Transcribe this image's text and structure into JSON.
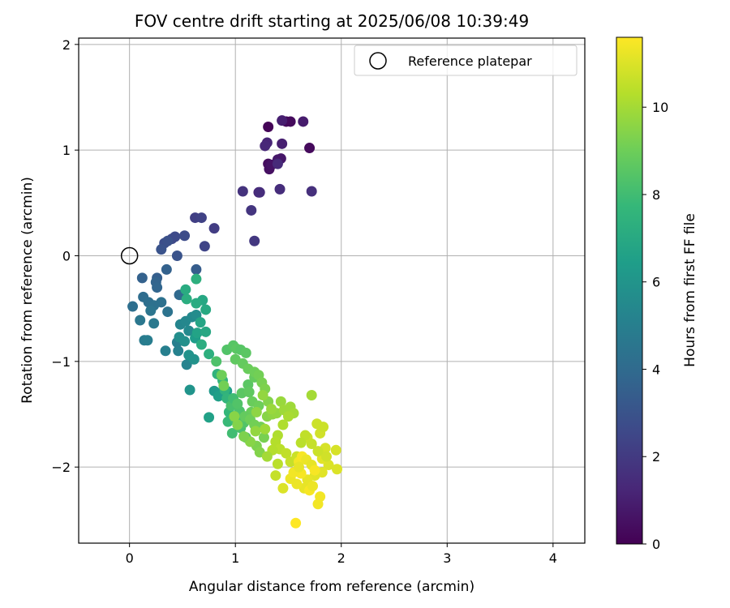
{
  "chart_data": {
    "type": "scatter",
    "title": "FOV centre drift starting at 2025/06/08 10:39:49",
    "xlabel": "Angular distance from reference (arcmin)",
    "ylabel": "Rotation from reference (arcmin)",
    "xlim": [
      -0.48,
      4.3
    ],
    "ylim": [
      -2.72,
      2.06
    ],
    "x_ticks": [
      "0",
      "1",
      "2",
      "3",
      "4"
    ],
    "y_ticks": [
      "2",
      "1",
      "0",
      "−1",
      "−2"
    ],
    "x_tick_values": [
      0,
      1,
      2,
      3,
      4
    ],
    "y_tick_values": [
      2,
      1,
      0,
      -1,
      -2
    ],
    "grid": true,
    "legend": {
      "placement": "top-right",
      "entries": [
        "Reference platepar"
      ]
    },
    "reference_point": {
      "name": "Reference platepar",
      "x": 0,
      "y": 0
    },
    "colorbar": {
      "label": "Hours from first FF file",
      "range": [
        0,
        11.6
      ],
      "ticks": [
        "0",
        "2",
        "4",
        "6",
        "8",
        "10"
      ],
      "tick_values": [
        0,
        2,
        4,
        6,
        8,
        10
      ],
      "colormap": "viridis",
      "colormap_stops": [
        "#440154",
        "#482878",
        "#3e4989",
        "#31688e",
        "#26828e",
        "#1f9e89",
        "#35b779",
        "#6ece58",
        "#b5de2b",
        "#fde725"
      ]
    },
    "points": [
      [
        1.31,
        1.22,
        0.1
      ],
      [
        1.48,
        1.27,
        0.2
      ],
      [
        1.52,
        1.27,
        0.3
      ],
      [
        1.7,
        1.02,
        0.3
      ],
      [
        1.31,
        0.87,
        0.4
      ],
      [
        1.32,
        0.82,
        0.5
      ],
      [
        1.34,
        0.86,
        0.6
      ],
      [
        1.4,
        0.91,
        0.8
      ],
      [
        1.43,
        0.92,
        0.7
      ],
      [
        1.44,
        1.28,
        1.0
      ],
      [
        1.64,
        1.27,
        0.9
      ],
      [
        1.44,
        1.06,
        1.0
      ],
      [
        1.3,
        1.07,
        1.2
      ],
      [
        1.28,
        1.04,
        1.3
      ],
      [
        1.4,
        0.87,
        1.4
      ],
      [
        1.22,
        0.6,
        1.3
      ],
      [
        1.23,
        0.6,
        1.5
      ],
      [
        1.42,
        0.63,
        1.5
      ],
      [
        1.07,
        0.61,
        1.7
      ],
      [
        1.72,
        0.61,
        1.6
      ],
      [
        1.15,
        0.43,
        1.8
      ],
      [
        1.18,
        0.14,
        1.9
      ],
      [
        0.8,
        0.26,
        2.1
      ],
      [
        0.62,
        0.36,
        2.2
      ],
      [
        0.68,
        0.36,
        2.3
      ],
      [
        0.71,
        0.09,
        2.4
      ],
      [
        0.43,
        0.18,
        2.6
      ],
      [
        0.52,
        0.19,
        2.7
      ],
      [
        0.4,
        0.16,
        2.6
      ],
      [
        0.33,
        0.12,
        2.8
      ],
      [
        0.3,
        0.06,
        3.0
      ],
      [
        0.45,
        0.0,
        3.0
      ],
      [
        0.36,
        0.14,
        2.9
      ],
      [
        0.63,
        -0.13,
        3.4
      ],
      [
        0.26,
        -0.21,
        3.5
      ],
      [
        0.35,
        -0.13,
        3.6
      ],
      [
        0.12,
        -0.21,
        3.6
      ],
      [
        0.25,
        -0.25,
        3.7
      ],
      [
        0.26,
        -0.3,
        3.8
      ],
      [
        0.47,
        -0.37,
        3.9
      ],
      [
        0.49,
        -0.37,
        4.0
      ],
      [
        0.13,
        -0.39,
        4.1
      ],
      [
        0.18,
        -0.44,
        4.2
      ],
      [
        0.3,
        -0.44,
        4.3
      ],
      [
        0.36,
        -0.53,
        4.4
      ],
      [
        0.23,
        -0.47,
        4.3
      ],
      [
        0.2,
        -0.52,
        4.5
      ],
      [
        0.03,
        -0.48,
        4.2
      ],
      [
        0.1,
        -0.61,
        4.6
      ],
      [
        0.23,
        -0.64,
        4.7
      ],
      [
        0.14,
        -0.8,
        4.8
      ],
      [
        0.17,
        -0.8,
        4.9
      ],
      [
        0.34,
        -0.9,
        5.0
      ],
      [
        0.45,
        -0.82,
        5.0
      ],
      [
        0.46,
        -0.9,
        5.1
      ],
      [
        0.54,
        -1.03,
        5.2
      ],
      [
        0.48,
        -0.65,
        5.3
      ],
      [
        0.53,
        -0.62,
        5.4
      ],
      [
        0.56,
        -0.71,
        5.5
      ],
      [
        0.59,
        -0.58,
        5.5
      ],
      [
        0.63,
        -0.56,
        5.6
      ],
      [
        0.47,
        -0.77,
        5.7
      ],
      [
        0.52,
        -0.81,
        5.8
      ],
      [
        0.56,
        -0.94,
        5.9
      ],
      [
        0.61,
        -0.98,
        5.9
      ],
      [
        0.57,
        -1.27,
        6.0
      ],
      [
        0.8,
        -1.28,
        6.2
      ],
      [
        0.85,
        -1.3,
        6.3
      ],
      [
        0.92,
        -1.28,
        6.4
      ],
      [
        0.84,
        -1.33,
        6.5
      ],
      [
        0.75,
        -1.53,
        6.6
      ],
      [
        0.62,
        -0.78,
        6.4
      ],
      [
        0.64,
        -0.73,
        6.7
      ],
      [
        0.67,
        -0.63,
        6.8
      ],
      [
        0.72,
        -0.72,
        6.9
      ],
      [
        0.72,
        -0.51,
        7.0
      ],
      [
        0.69,
        -0.42,
        6.9
      ],
      [
        0.63,
        -0.45,
        7.1
      ],
      [
        0.54,
        -0.41,
        7.2
      ],
      [
        0.53,
        -0.32,
        7.1
      ],
      [
        0.63,
        -0.22,
        7.3
      ],
      [
        0.68,
        -0.84,
        7.2
      ],
      [
        0.75,
        -0.93,
        7.3
      ],
      [
        0.83,
        -1.12,
        7.5
      ],
      [
        0.88,
        -1.18,
        7.6
      ],
      [
        0.9,
        -1.27,
        7.5
      ],
      [
        0.92,
        -1.35,
        7.6
      ],
      [
        0.94,
        -1.48,
        7.7
      ],
      [
        0.93,
        -1.57,
        7.8
      ],
      [
        0.97,
        -1.68,
        8.0
      ],
      [
        1.0,
        -1.55,
        8.1
      ],
      [
        1.05,
        -1.63,
        8.2
      ],
      [
        1.08,
        -1.58,
        8.4
      ],
      [
        1.1,
        -1.72,
        8.5
      ],
      [
        1.04,
        -1.47,
        8.3
      ],
      [
        0.96,
        -1.42,
        8.2
      ],
      [
        0.98,
        -1.35,
        8.0
      ],
      [
        1.02,
        -1.4,
        8.4
      ],
      [
        1.06,
        -1.3,
        8.6
      ],
      [
        1.12,
        -1.22,
        8.6
      ],
      [
        1.18,
        -1.15,
        8.8
      ],
      [
        1.13,
        -1.29,
        8.7
      ],
      [
        1.16,
        -1.38,
        8.9
      ],
      [
        1.22,
        -1.42,
        9.0
      ],
      [
        1.15,
        -1.48,
        8.9
      ],
      [
        1.09,
        -1.52,
        8.8
      ],
      [
        1.14,
        -1.55,
        9.0
      ],
      [
        1.18,
        -1.6,
        9.1
      ],
      [
        1.24,
        -1.62,
        9.1
      ],
      [
        1.27,
        -1.72,
        9.2
      ],
      [
        1.2,
        -1.8,
        9.3
      ],
      [
        1.23,
        -1.86,
        9.4
      ],
      [
        1.14,
        -1.76,
        9.5
      ],
      [
        1.08,
        -1.71,
        9.3
      ],
      [
        1.02,
        -1.6,
        9.4
      ],
      [
        0.99,
        -1.52,
        9.5
      ],
      [
        0.89,
        -1.23,
        9.1
      ],
      [
        0.87,
        -1.13,
        9.0
      ],
      [
        0.82,
        -1.0,
        8.3
      ],
      [
        0.92,
        -0.89,
        8.4
      ],
      [
        0.98,
        -0.85,
        8.5
      ],
      [
        1.01,
        -0.88,
        8.6
      ],
      [
        1.05,
        -0.89,
        8.5
      ],
      [
        1.1,
        -0.92,
        8.6
      ],
      [
        1.0,
        -0.98,
        8.7
      ],
      [
        1.07,
        -1.02,
        8.8
      ],
      [
        1.12,
        -1.07,
        8.9
      ],
      [
        1.18,
        -1.1,
        9.0
      ],
      [
        1.22,
        -1.13,
        9.1
      ],
      [
        1.25,
        -1.2,
        9.2
      ],
      [
        1.28,
        -1.26,
        9.3
      ],
      [
        1.31,
        -1.38,
        9.4
      ],
      [
        1.3,
        -1.52,
        9.5
      ],
      [
        1.35,
        -1.5,
        9.6
      ],
      [
        1.39,
        -1.49,
        9.7
      ],
      [
        1.43,
        -1.38,
        9.8
      ],
      [
        1.46,
        -1.46,
        9.9
      ],
      [
        1.52,
        -1.43,
        9.9
      ],
      [
        1.55,
        -1.49,
        10.0
      ],
      [
        1.72,
        -1.32,
        10.0
      ],
      [
        1.5,
        -1.52,
        10.1
      ],
      [
        1.45,
        -1.6,
        10.2
      ],
      [
        1.4,
        -1.7,
        10.2
      ],
      [
        1.38,
        -1.76,
        10.3
      ],
      [
        1.42,
        -1.83,
        10.4
      ],
      [
        1.35,
        -1.84,
        10.3
      ],
      [
        1.48,
        -1.87,
        10.5
      ],
      [
        1.52,
        -1.95,
        10.6
      ],
      [
        1.58,
        -1.9,
        10.7
      ],
      [
        1.68,
        -1.72,
        10.8
      ],
      [
        1.8,
        -1.68,
        10.8
      ],
      [
        1.83,
        -1.62,
        10.7
      ],
      [
        1.77,
        -1.59,
        10.7
      ],
      [
        1.85,
        -1.82,
        10.9
      ],
      [
        1.95,
        -1.84,
        10.9
      ],
      [
        1.88,
        -1.98,
        11.0
      ],
      [
        1.96,
        -2.02,
        11.0
      ],
      [
        1.82,
        -2.05,
        11.1
      ],
      [
        1.75,
        -2.08,
        11.1
      ],
      [
        1.68,
        -2.12,
        11.2
      ],
      [
        1.65,
        -2.2,
        11.2
      ],
      [
        1.58,
        -2.16,
        11.3
      ],
      [
        1.52,
        -2.11,
        11.3
      ],
      [
        1.45,
        -2.2,
        11.0
      ],
      [
        1.38,
        -2.08,
        10.6
      ],
      [
        1.4,
        -1.97,
        10.4
      ],
      [
        1.78,
        -2.35,
        11.4
      ],
      [
        1.8,
        -2.28,
        11.4
      ],
      [
        1.7,
        -2.22,
        11.5
      ],
      [
        1.62,
        -2.06,
        11.5
      ],
      [
        1.6,
        -1.95,
        11.4
      ],
      [
        1.63,
        -1.9,
        11.5
      ],
      [
        1.67,
        -1.93,
        11.3
      ],
      [
        1.72,
        -1.98,
        11.2
      ],
      [
        1.75,
        -2.03,
        11.5
      ],
      [
        1.73,
        -2.18,
        11.3
      ],
      [
        1.57,
        -2.53,
        11.6
      ],
      [
        1.55,
        -2.05,
        11.4
      ],
      [
        1.6,
        -2.0,
        11.2
      ],
      [
        1.82,
        -1.92,
        11.1
      ],
      [
        1.86,
        -1.9,
        10.8
      ],
      [
        1.78,
        -1.85,
        10.7
      ],
      [
        1.72,
        -1.78,
        10.6
      ],
      [
        1.66,
        -1.7,
        10.5
      ],
      [
        1.62,
        -1.77,
        10.4
      ],
      [
        1.3,
        -1.9,
        10.0
      ],
      [
        1.34,
        -1.45,
        9.8
      ],
      [
        1.26,
        -1.32,
        9.7
      ],
      [
        1.2,
        -1.48,
        9.6
      ],
      [
        1.19,
        -1.66,
        9.7
      ],
      [
        1.28,
        -1.64,
        9.9
      ]
    ]
  }
}
